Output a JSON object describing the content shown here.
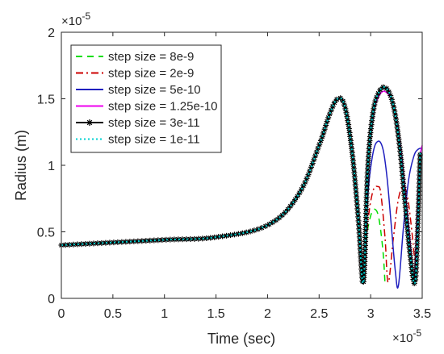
{
  "chart_data": {
    "type": "line",
    "title": "",
    "xlabel": "Time (sec)",
    "ylabel": "Radius (m)",
    "xlim": [
      0,
      3.5e-05
    ],
    "ylim": [
      0,
      2e-05
    ],
    "x_multiplier": "×10",
    "x_exponent": "-5",
    "y_multiplier": "×10",
    "y_exponent": "-5",
    "xticks": [
      0,
      0.5,
      1,
      1.5,
      2,
      2.5,
      3,
      3.5
    ],
    "xtick_labels": [
      "0",
      "0.5",
      "1",
      "1.5",
      "2",
      "2.5",
      "3",
      "3.5"
    ],
    "yticks": [
      0,
      0.5,
      1,
      1.5,
      2
    ],
    "ytick_labels": [
      "0",
      "0.5",
      "1",
      "1.5",
      "2"
    ],
    "grid": false,
    "legend_position": "top-left",
    "series": [
      {
        "name": "step size = 8e-9",
        "color": "#00dd00",
        "dash": "8,6",
        "marker": "none",
        "x": [
          0,
          0.5,
          1,
          1.5,
          2,
          2.3,
          2.5,
          2.6,
          2.68,
          2.75,
          2.82,
          2.88,
          2.93,
          2.96,
          3.0,
          3.04,
          3.08,
          3.12,
          3.14
        ],
        "y": [
          0.4,
          0.42,
          0.44,
          0.46,
          0.55,
          0.78,
          1.15,
          1.38,
          1.5,
          1.44,
          1.1,
          0.6,
          0.12,
          0.45,
          0.62,
          0.67,
          0.6,
          0.35,
          0.1
        ]
      },
      {
        "name": "step size = 2e-9",
        "color": "#cc0000",
        "dash": "9,4,2,4",
        "marker": "none",
        "x": [
          0,
          0.5,
          1,
          1.5,
          2,
          2.3,
          2.5,
          2.6,
          2.68,
          2.75,
          2.82,
          2.88,
          2.93,
          2.97,
          3.02,
          3.07,
          3.1,
          3.14,
          3.17,
          3.22,
          3.27,
          3.32,
          3.36,
          3.4,
          3.44
        ],
        "y": [
          0.4,
          0.42,
          0.44,
          0.46,
          0.55,
          0.78,
          1.15,
          1.38,
          1.5,
          1.44,
          1.1,
          0.6,
          0.12,
          0.55,
          0.8,
          0.84,
          0.78,
          0.45,
          0.12,
          0.45,
          0.75,
          0.84,
          0.75,
          0.5,
          0.18
        ]
      },
      {
        "name": "step size = 5e-10",
        "color": "#1f1fbf",
        "dash": "",
        "marker": "none",
        "x": [
          0,
          0.5,
          1,
          1.5,
          2,
          2.3,
          2.5,
          2.6,
          2.68,
          2.75,
          2.82,
          2.88,
          2.93,
          2.97,
          3.02,
          3.07,
          3.12,
          3.16,
          3.2,
          3.24,
          3.27,
          3.32,
          3.37,
          3.42,
          3.46,
          3.5
        ],
        "y": [
          0.4,
          0.42,
          0.44,
          0.46,
          0.55,
          0.78,
          1.15,
          1.38,
          1.5,
          1.44,
          1.1,
          0.6,
          0.12,
          0.75,
          1.08,
          1.18,
          1.12,
          0.9,
          0.55,
          0.2,
          0.1,
          0.55,
          0.9,
          1.07,
          1.12,
          1.13
        ]
      },
      {
        "name": "step size = 1.25e-10",
        "color": "#ee00ee",
        "dash": "",
        "marker": "none",
        "x": [
          0,
          0.5,
          1,
          1.5,
          2,
          2.3,
          2.5,
          2.6,
          2.68,
          2.75,
          2.82,
          2.88,
          2.93,
          2.97,
          3.02,
          3.08,
          3.15,
          3.22,
          3.28,
          3.33,
          3.38,
          3.42,
          3.45,
          3.48,
          3.5
        ],
        "y": [
          0.4,
          0.42,
          0.44,
          0.46,
          0.55,
          0.78,
          1.15,
          1.38,
          1.5,
          1.44,
          1.1,
          0.6,
          0.12,
          0.95,
          1.35,
          1.52,
          1.55,
          1.45,
          1.2,
          0.85,
          0.45,
          0.12,
          0.6,
          1.05,
          1.15
        ]
      },
      {
        "name": "step size = 3e-11",
        "color": "#000000",
        "dash": "",
        "marker": "asterisk",
        "x": [
          0,
          0.5,
          1,
          1.5,
          2,
          2.3,
          2.5,
          2.6,
          2.68,
          2.75,
          2.82,
          2.88,
          2.93,
          2.97,
          3.02,
          3.08,
          3.15,
          3.22,
          3.28,
          3.33,
          3.38,
          3.43,
          3.46,
          3.48
        ],
        "y": [
          0.4,
          0.42,
          0.44,
          0.46,
          0.55,
          0.78,
          1.15,
          1.38,
          1.5,
          1.44,
          1.1,
          0.6,
          0.12,
          0.95,
          1.38,
          1.55,
          1.58,
          1.45,
          1.15,
          0.75,
          0.35,
          0.12,
          0.6,
          1.1
        ]
      },
      {
        "name": "step size = 1e-11",
        "color": "#00d0d0",
        "dash": "2,3",
        "marker": "none",
        "x": [
          0,
          0.5,
          1,
          1.5,
          2,
          2.3,
          2.5,
          2.6,
          2.68,
          2.75,
          2.82,
          2.88,
          2.93,
          2.97,
          3.02,
          3.08,
          3.15,
          3.22,
          3.28,
          3.33,
          3.38,
          3.43,
          3.46,
          3.48
        ],
        "y": [
          0.4,
          0.42,
          0.44,
          0.46,
          0.55,
          0.78,
          1.15,
          1.38,
          1.5,
          1.44,
          1.1,
          0.6,
          0.12,
          0.95,
          1.38,
          1.55,
          1.58,
          1.45,
          1.15,
          0.75,
          0.35,
          0.12,
          0.6,
          1.1
        ]
      }
    ]
  }
}
